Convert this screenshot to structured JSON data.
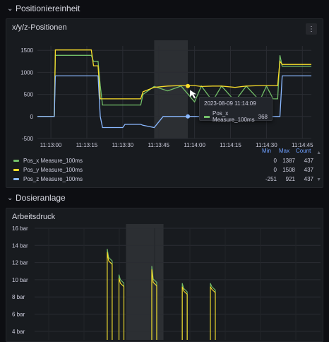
{
  "rows": [
    {
      "title": "Positioniereinheit",
      "chevron": "chevron-down-icon"
    },
    {
      "title": "Dosieranlage",
      "chevron": "chevron-down-icon"
    }
  ],
  "panel1": {
    "title": "x/y/z-Positionen",
    "menu_icon": "vertical-ellipsis-icon",
    "legend_headers": [
      "Min",
      "Max",
      "Count"
    ],
    "legend": [
      {
        "name": "Pos_x Measure_100ms",
        "min": "0",
        "max": "1387",
        "count": "437",
        "color": "#73bf69"
      },
      {
        "name": "Pos_y Measure_100ms",
        "min": "0",
        "max": "1508",
        "count": "437",
        "color": "#fade2a"
      },
      {
        "name": "Pos_z Measure_100ms",
        "min": "-251",
        "max": "921",
        "count": "437",
        "color": "#8ab8ff"
      }
    ],
    "tooltip": {
      "time": "2023-08-09 11:14:09",
      "series": "Pos_x Measure_100ms",
      "value": "368"
    }
  },
  "panel2": {
    "title": "Arbeitsdruck"
  },
  "chart_data": [
    {
      "type": "line",
      "title": "x/y/z-Positionen",
      "x": [
        "11:13:00",
        "11:13:15",
        "11:13:30",
        "11:13:45",
        "11:14:00",
        "11:14:15",
        "11:14:30",
        "11:14:45"
      ],
      "yticks": [
        "1500",
        "1000",
        "500",
        "0",
        "-500"
      ],
      "ylim": [
        -500,
        1600
      ],
      "series": [
        {
          "name": "Pos_x Measure_100ms",
          "color": "#73bf69",
          "points": [
            [
              0,
              0
            ],
            [
              7.5,
              0
            ],
            [
              8,
              1387
            ],
            [
              24,
              1387
            ],
            [
              25,
              1250
            ],
            [
              27,
              1250
            ],
            [
              28,
              700
            ],
            [
              29,
              260
            ],
            [
              46,
              260
            ],
            [
              47,
              500
            ],
            [
              52,
              680
            ],
            [
              58,
              580
            ],
            [
              64,
              690
            ],
            [
              70,
              330
            ],
            [
              73,
              690
            ],
            [
              78,
              350
            ],
            [
              82,
              690
            ],
            [
              88,
              350
            ],
            [
              93,
              690
            ],
            [
              99,
              360
            ],
            [
              102,
              690
            ],
            [
              105,
              400
            ],
            [
              107,
              400
            ],
            [
              108,
              1387
            ],
            [
              109,
              1140
            ],
            [
              122,
              1140
            ]
          ]
        },
        {
          "name": "Pos_y Measure_100ms",
          "color": "#fade2a",
          "points": [
            [
              0,
              0
            ],
            [
              7.5,
              0
            ],
            [
              8,
              1508
            ],
            [
              24,
              1508
            ],
            [
              25,
              1150
            ],
            [
              27,
              1150
            ],
            [
              28,
              400
            ],
            [
              29,
              400
            ],
            [
              46,
              400
            ],
            [
              47,
              560
            ],
            [
              52,
              660
            ],
            [
              58,
              690
            ],
            [
              64,
              700
            ],
            [
              70,
              700
            ],
            [
              73,
              680
            ],
            [
              78,
              690
            ],
            [
              82,
              690
            ],
            [
              88,
              660
            ],
            [
              93,
              690
            ],
            [
              99,
              700
            ],
            [
              102,
              700
            ],
            [
              105,
              700
            ],
            [
              107,
              700
            ],
            [
              108,
              1250
            ],
            [
              109,
              1180
            ],
            [
              122,
              1180
            ]
          ]
        },
        {
          "name": "Pos_z Measure_100ms",
          "color": "#8ab8ff",
          "points": [
            [
              0,
              0
            ],
            [
              7.5,
              0
            ],
            [
              8,
              921
            ],
            [
              24,
              921
            ],
            [
              25,
              921
            ],
            [
              27,
              921
            ],
            [
              28,
              0
            ],
            [
              29,
              -251
            ],
            [
              38,
              -251
            ],
            [
              39,
              -180
            ],
            [
              46,
              -180
            ],
            [
              47,
              -200
            ],
            [
              52,
              -251
            ],
            [
              56,
              0
            ],
            [
              64,
              0
            ],
            [
              108,
              0
            ],
            [
              109,
              921
            ],
            [
              122,
              921
            ]
          ]
        }
      ],
      "highlight_region": [
        "11:13:50",
        "11:14:05"
      ]
    },
    {
      "type": "line",
      "title": "Arbeitsdruck",
      "yticks": [
        "16 bar",
        "14 bar",
        "12 bar",
        "10 bar",
        "8 bar",
        "6 bar",
        "4 bar"
      ],
      "ylim": [
        3,
        16
      ],
      "series": [
        {
          "name": "green",
          "color": "#73bf69",
          "pulses": [
            [
              31,
              13.6,
              12.2
            ],
            [
              36,
              10.6,
              9.6
            ],
            [
              50,
              11.6,
              9.7
            ],
            [
              63,
              9.6,
              8.6
            ],
            [
              75,
              9.6,
              8.8
            ]
          ]
        },
        {
          "name": "yellow",
          "color": "#fade2a",
          "pulses": [
            [
              31,
              13.2,
              11.8
            ],
            [
              36,
              10.2,
              9.2
            ],
            [
              50,
              11.2,
              9.3
            ],
            [
              63,
              9.2,
              8.3
            ],
            [
              75,
              9.2,
              8.5
            ]
          ]
        }
      ],
      "highlight_region": [
        39,
        55
      ]
    }
  ]
}
